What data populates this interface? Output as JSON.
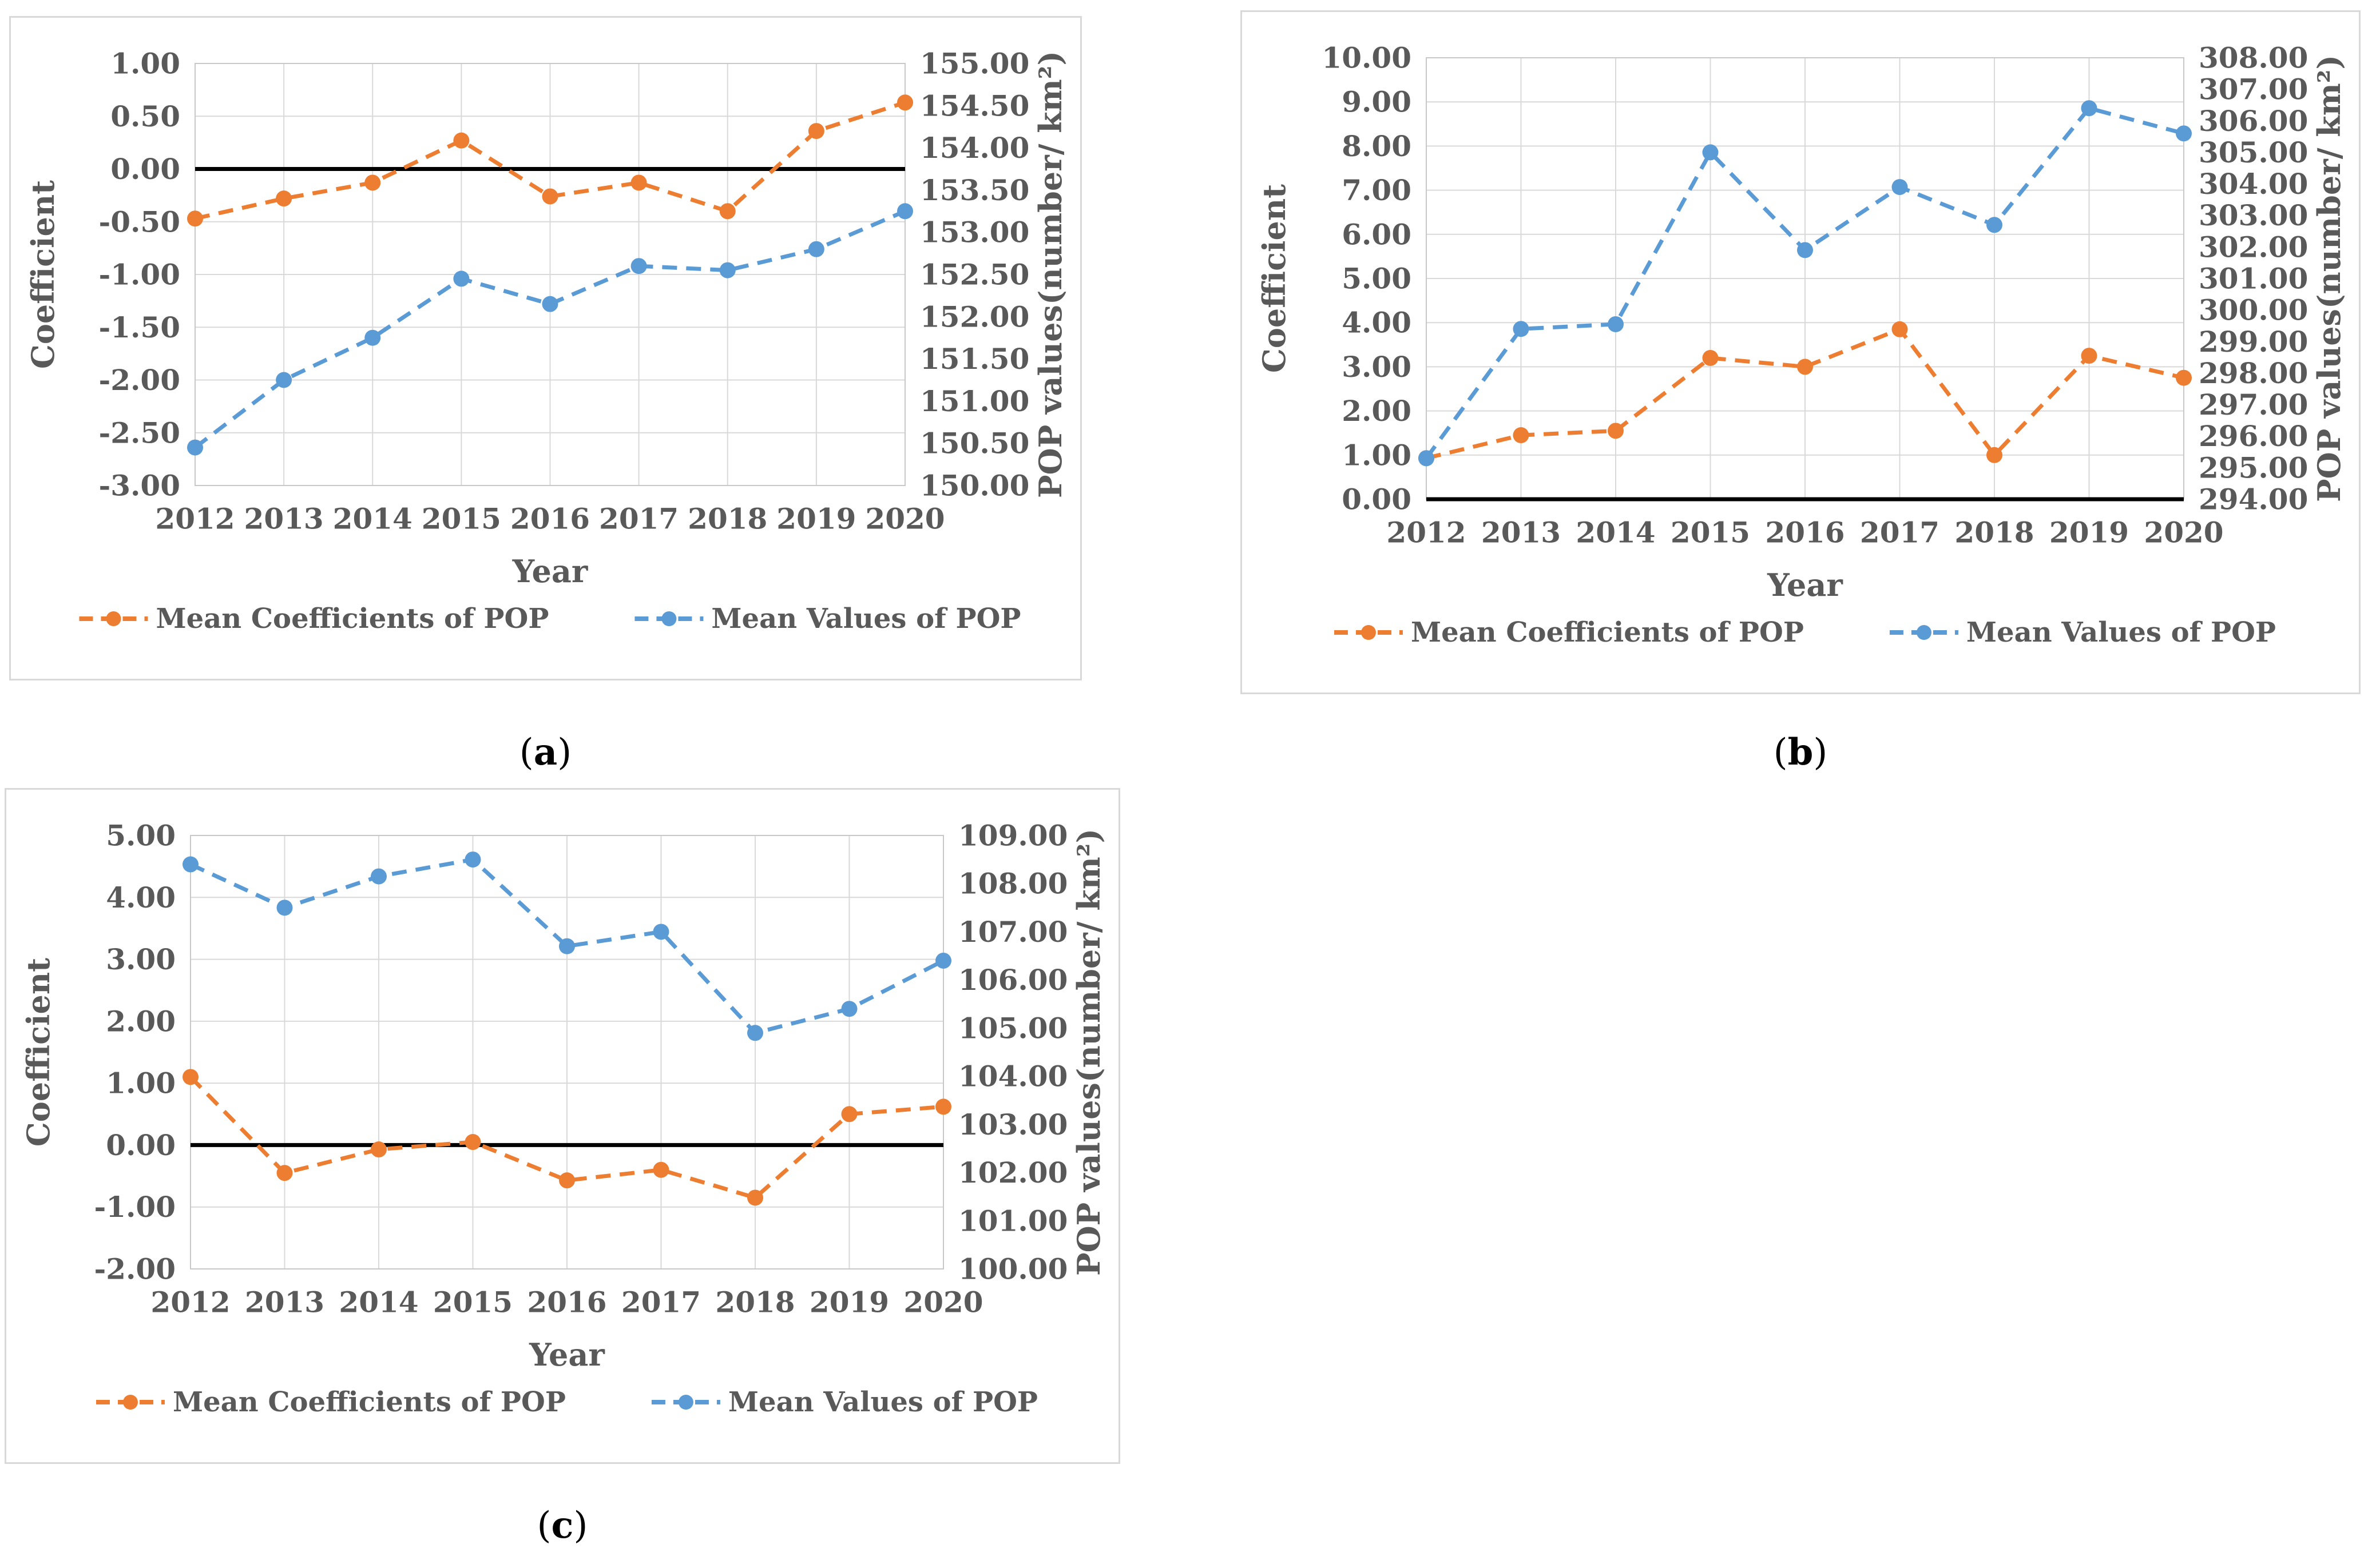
{
  "page": {
    "background": "#ffffff"
  },
  "colors": {
    "coefficient_series": "#ED7D31",
    "pop_series": "#5B9BD5",
    "axis_text": "#595959",
    "gridline": "#D9D9D9",
    "plot_border": "#C8C8C8",
    "zero_line": "#000000",
    "panel_border": "#D9D9D9"
  },
  "captions": [
    {
      "open": "(",
      "letter": "a",
      "close": ")"
    },
    {
      "open": "(",
      "letter": "b",
      "close": ")"
    },
    {
      "open": "(",
      "letter": "c",
      "close": ")"
    }
  ],
  "chart_data": [
    {
      "id": "a",
      "type": "line",
      "title": "",
      "xlabel": "Year",
      "x": [
        2012,
        2013,
        2014,
        2015,
        2016,
        2017,
        2018,
        2019,
        2020
      ],
      "left_axis": {
        "label": "Coefficient",
        "min": -3,
        "max": 1,
        "step": 0.5
      },
      "right_axis": {
        "label": "POP values(number/ km²)",
        "min": 150,
        "max": 155,
        "step": 0.5
      },
      "grid": true,
      "zero_line": true,
      "legend_position": "bottom",
      "series": [
        {
          "name": "Mean Coefficients of POP",
          "axis": "left",
          "color_key": "coefficient_series",
          "values": [
            -0.47,
            -0.28,
            -0.13,
            0.27,
            -0.26,
            -0.13,
            -0.4,
            0.36,
            0.63
          ]
        },
        {
          "name": "Mean Values of POP",
          "axis": "right",
          "color_key": "pop_series",
          "values": [
            150.45,
            151.25,
            151.75,
            152.45,
            152.15,
            152.6,
            152.55,
            152.8,
            153.25
          ]
        }
      ]
    },
    {
      "id": "b",
      "type": "line",
      "title": "",
      "xlabel": "Year",
      "x": [
        2012,
        2013,
        2014,
        2015,
        2016,
        2017,
        2018,
        2019,
        2020
      ],
      "left_axis": {
        "label": "Coefficient",
        "min": 0,
        "max": 10,
        "step": 1
      },
      "right_axis": {
        "label": "POP values(number/ km²)",
        "min": 294,
        "max": 308,
        "step": 1
      },
      "grid": true,
      "zero_line": true,
      "legend_position": "bottom",
      "series": [
        {
          "name": "Mean Coefficients of POP",
          "axis": "left",
          "color_key": "coefficient_series",
          "values": [
            0.93,
            1.45,
            1.55,
            3.2,
            3.0,
            3.85,
            1.0,
            3.25,
            2.75
          ]
        },
        {
          "name": "Mean Values of POP",
          "axis": "right",
          "color_key": "pop_series",
          "values": [
            295.3,
            299.4,
            299.55,
            305.0,
            301.9,
            303.9,
            302.7,
            306.4,
            305.6
          ]
        }
      ]
    },
    {
      "id": "c",
      "type": "line",
      "title": "",
      "xlabel": "Year",
      "x": [
        2012,
        2013,
        2014,
        2015,
        2016,
        2017,
        2018,
        2019,
        2020
      ],
      "left_axis": {
        "label": "Coefficient",
        "min": -2,
        "max": 5,
        "step": 1
      },
      "right_axis": {
        "label": "POP values(number/ km²)",
        "min": 100,
        "max": 109,
        "step": 1
      },
      "grid": true,
      "zero_line": true,
      "legend_position": "bottom",
      "series": [
        {
          "name": "Mean Coefficients of POP",
          "axis": "left",
          "color_key": "coefficient_series",
          "values": [
            1.1,
            -0.45,
            -0.07,
            0.05,
            -0.57,
            -0.4,
            -0.85,
            0.5,
            0.62
          ]
        },
        {
          "name": "Mean Values of POP",
          "axis": "right",
          "color_key": "pop_series",
          "values": [
            108.4,
            107.5,
            108.15,
            108.5,
            106.7,
            107.0,
            104.9,
            105.4,
            106.4
          ]
        }
      ]
    }
  ]
}
